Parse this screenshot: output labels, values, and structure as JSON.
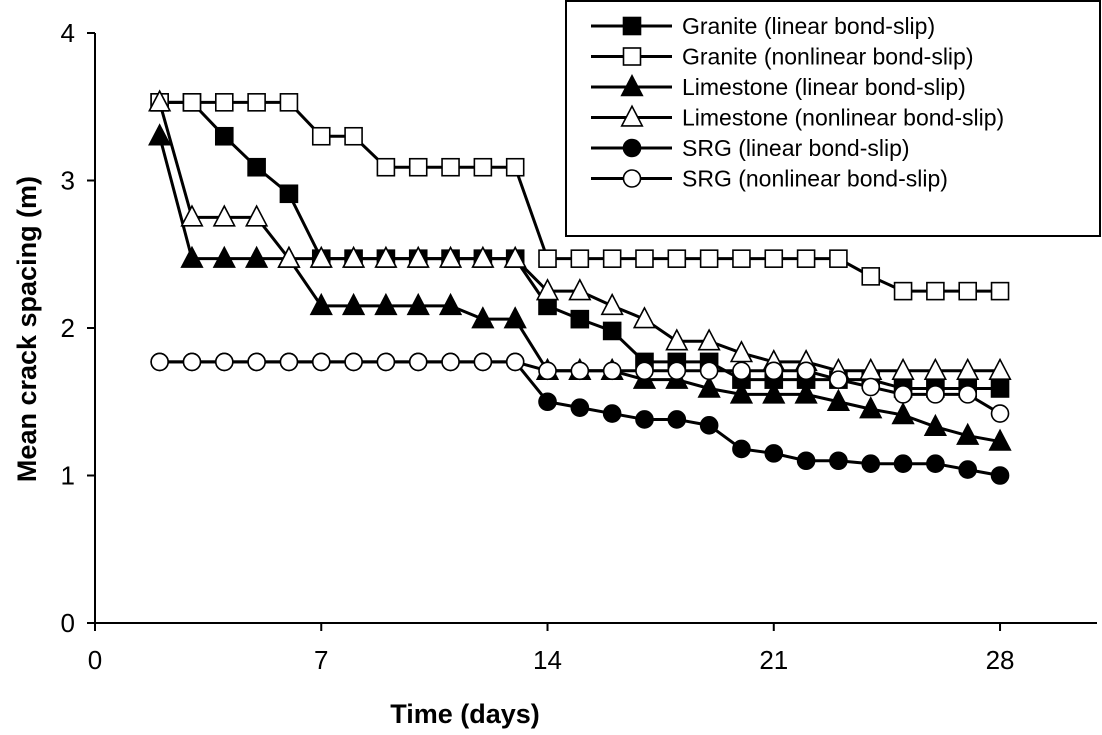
{
  "chart_data": {
    "type": "line",
    "title": "",
    "xlabel": "Time (days)",
    "ylabel": "Mean crack spacing (m)",
    "xlim": [
      0,
      31
    ],
    "ylim": [
      0,
      4
    ],
    "xticks": [
      0,
      7,
      14,
      21,
      28
    ],
    "yticks": [
      0,
      1,
      2,
      3,
      4
    ],
    "grid": false,
    "legend_position": "top-right",
    "series": [
      {
        "name": "Granite (linear bond-slip)",
        "marker": "square",
        "filled": true,
        "x": [
          2,
          3,
          4,
          5,
          6,
          7,
          8,
          9,
          10,
          11,
          12,
          13,
          14,
          15,
          16,
          17,
          18,
          19,
          20,
          21,
          22,
          23,
          24,
          25,
          26,
          27,
          28
        ],
        "y": [
          3.53,
          3.53,
          3.3,
          3.09,
          2.91,
          2.47,
          2.47,
          2.47,
          2.47,
          2.47,
          2.47,
          2.47,
          2.15,
          2.06,
          1.98,
          1.77,
          1.77,
          1.77,
          1.65,
          1.65,
          1.65,
          1.65,
          1.65,
          1.59,
          1.59,
          1.59,
          1.59
        ]
      },
      {
        "name": "Granite (nonlinear bond-slip)",
        "marker": "square",
        "filled": false,
        "x": [
          2,
          3,
          4,
          5,
          6,
          7,
          8,
          9,
          10,
          11,
          12,
          13,
          14,
          15,
          16,
          17,
          18,
          19,
          20,
          21,
          22,
          23,
          24,
          25,
          26,
          27,
          28
        ],
        "y": [
          3.53,
          3.53,
          3.53,
          3.53,
          3.53,
          3.3,
          3.3,
          3.09,
          3.09,
          3.09,
          3.09,
          3.09,
          2.47,
          2.47,
          2.47,
          2.47,
          2.47,
          2.47,
          2.47,
          2.47,
          2.47,
          2.47,
          2.35,
          2.25,
          2.25,
          2.25,
          2.25
        ]
      },
      {
        "name": "Limestone (linear bond-slip)",
        "marker": "triangle",
        "filled": true,
        "x": [
          2,
          3,
          4,
          5,
          6,
          7,
          8,
          9,
          10,
          11,
          12,
          13,
          14,
          15,
          16,
          17,
          18,
          19,
          20,
          21,
          22,
          23,
          24,
          25,
          26,
          27,
          28
        ],
        "y": [
          3.3,
          2.47,
          2.47,
          2.47,
          2.47,
          2.15,
          2.15,
          2.15,
          2.15,
          2.15,
          2.06,
          2.06,
          1.71,
          1.71,
          1.71,
          1.65,
          1.65,
          1.59,
          1.55,
          1.55,
          1.55,
          1.5,
          1.45,
          1.41,
          1.33,
          1.27,
          1.23
        ]
      },
      {
        "name": "Limestone (nonlinear bond-slip)",
        "marker": "triangle",
        "filled": false,
        "x": [
          2,
          3,
          4,
          5,
          6,
          7,
          8,
          9,
          10,
          11,
          12,
          13,
          14,
          15,
          16,
          17,
          18,
          19,
          20,
          21,
          22,
          23,
          24,
          25,
          26,
          27,
          28
        ],
        "y": [
          3.53,
          2.75,
          2.75,
          2.75,
          2.47,
          2.47,
          2.47,
          2.47,
          2.47,
          2.47,
          2.47,
          2.47,
          2.25,
          2.25,
          2.15,
          2.06,
          1.91,
          1.91,
          1.83,
          1.77,
          1.77,
          1.71,
          1.71,
          1.71,
          1.71,
          1.71,
          1.71
        ]
      },
      {
        "name": "SRG (linear bond-slip)",
        "marker": "circle",
        "filled": true,
        "x": [
          2,
          3,
          4,
          5,
          6,
          7,
          8,
          9,
          10,
          11,
          12,
          13,
          14,
          15,
          16,
          17,
          18,
          19,
          20,
          21,
          22,
          23,
          24,
          25,
          26,
          27,
          28
        ],
        "y": [
          1.77,
          1.77,
          1.77,
          1.77,
          1.77,
          1.77,
          1.77,
          1.77,
          1.77,
          1.77,
          1.77,
          1.77,
          1.5,
          1.46,
          1.42,
          1.38,
          1.38,
          1.34,
          1.18,
          1.15,
          1.1,
          1.1,
          1.08,
          1.08,
          1.08,
          1.04,
          1.0
        ]
      },
      {
        "name": "SRG (nonlinear bond-slip)",
        "marker": "circle",
        "filled": false,
        "x": [
          2,
          3,
          4,
          5,
          6,
          7,
          8,
          9,
          10,
          11,
          12,
          13,
          14,
          15,
          16,
          17,
          18,
          19,
          20,
          21,
          22,
          23,
          24,
          25,
          26,
          27,
          28
        ],
        "y": [
          1.77,
          1.77,
          1.77,
          1.77,
          1.77,
          1.77,
          1.77,
          1.77,
          1.77,
          1.77,
          1.77,
          1.77,
          1.71,
          1.71,
          1.71,
          1.71,
          1.71,
          1.71,
          1.71,
          1.71,
          1.71,
          1.65,
          1.6,
          1.55,
          1.55,
          1.55,
          1.42
        ]
      }
    ]
  }
}
